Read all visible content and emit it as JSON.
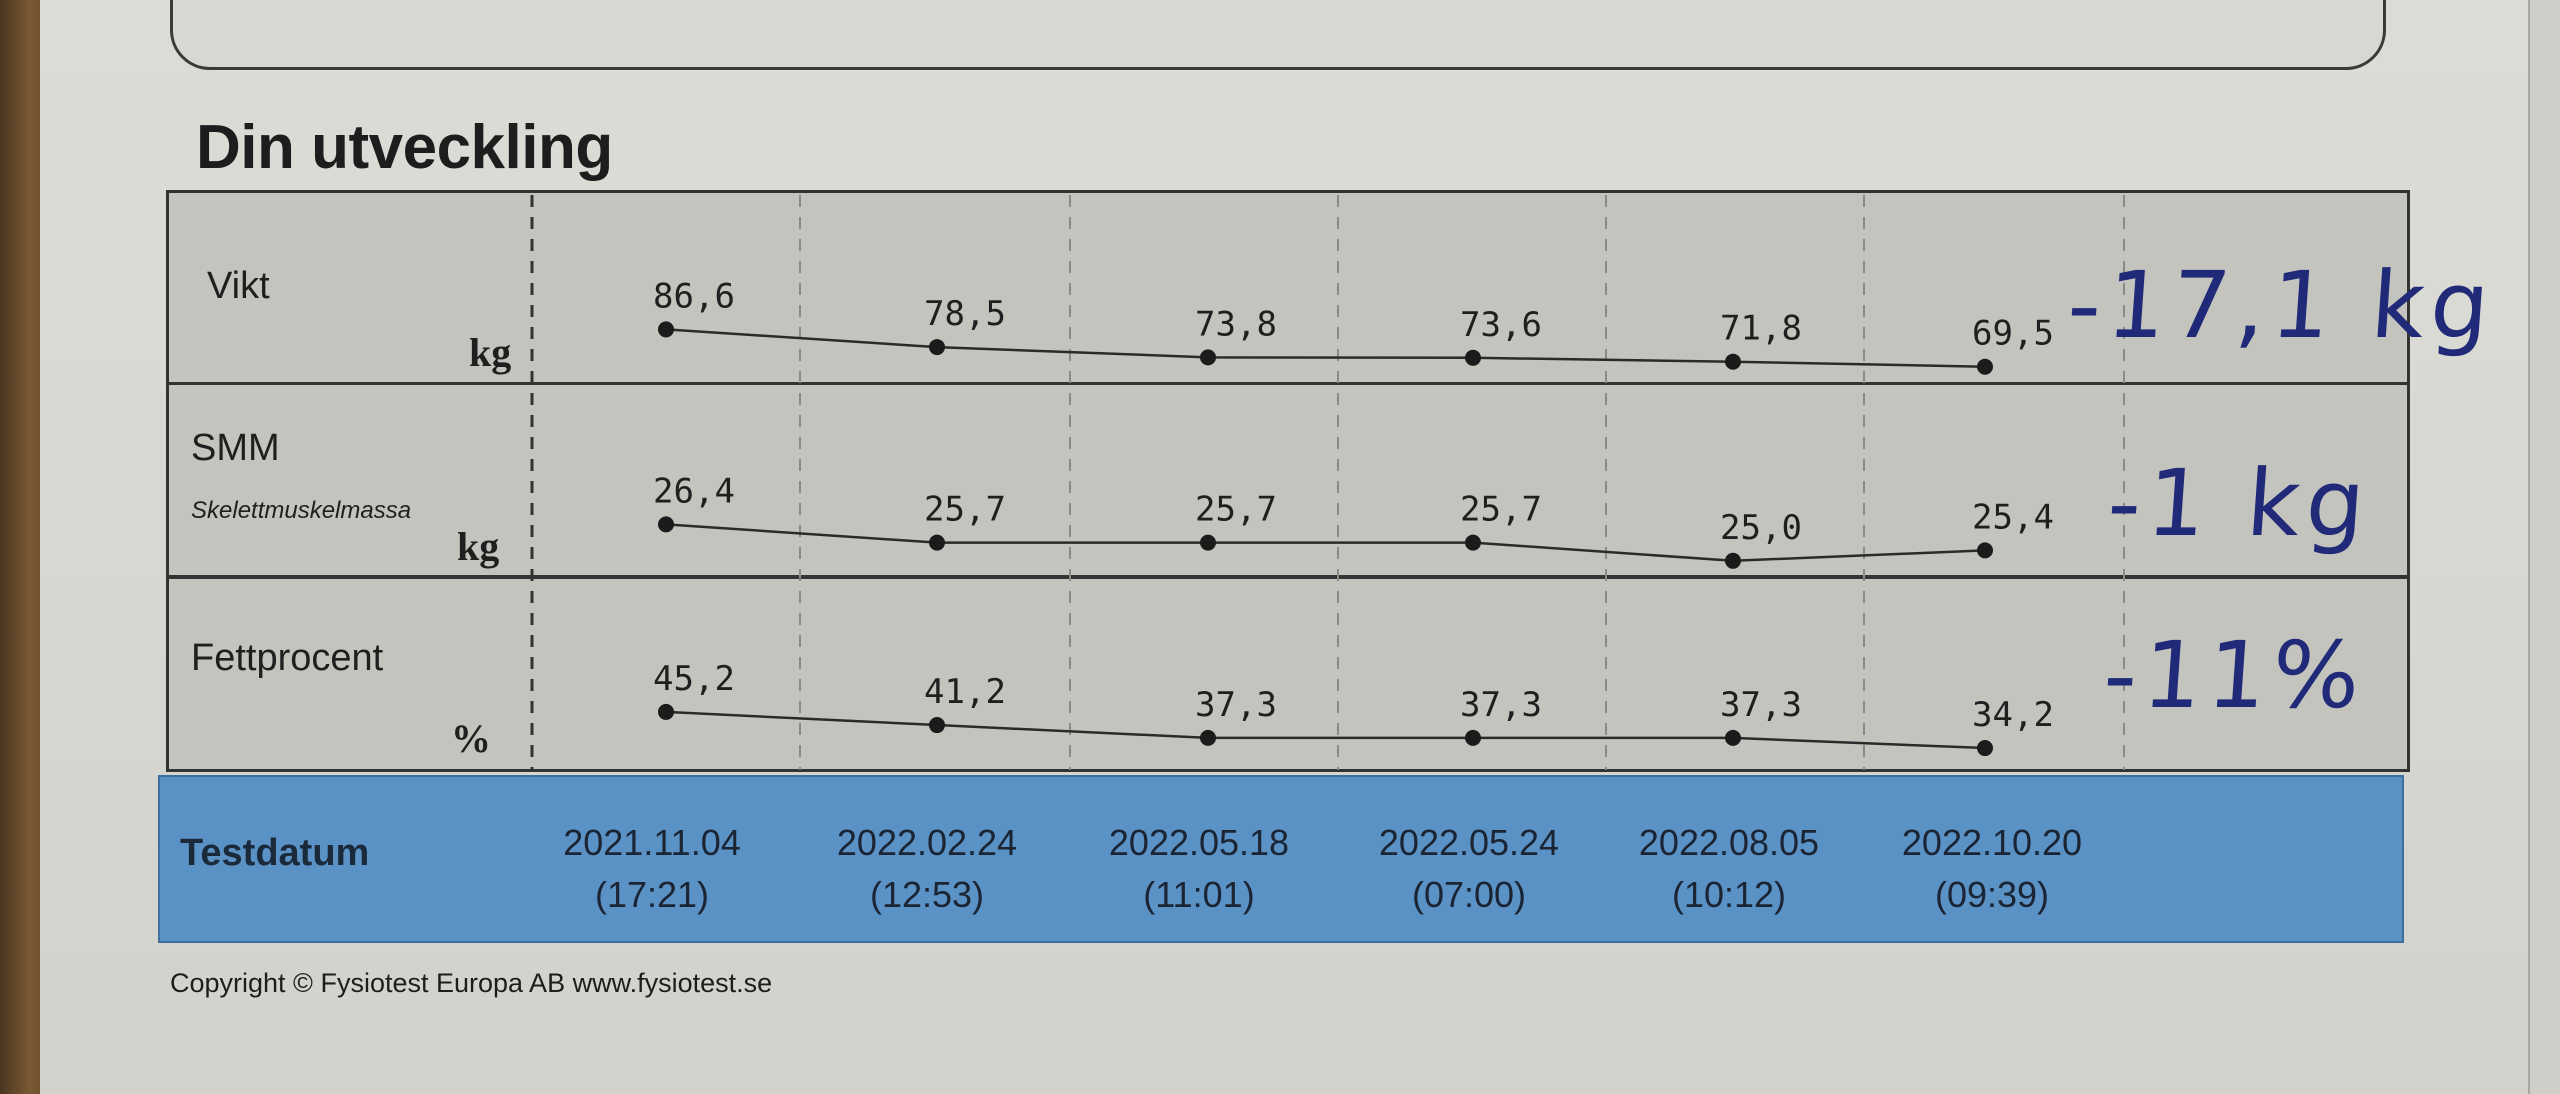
{
  "title": "Din utveckling",
  "dates": [
    {
      "date": "2021.11.04",
      "time": "(17:21)"
    },
    {
      "date": "2022.02.24",
      "time": "(12:53)"
    },
    {
      "date": "2022.05.18",
      "time": "(11:01)"
    },
    {
      "date": "2022.05.24",
      "time": "(07:00)"
    },
    {
      "date": "2022.08.05",
      "time": "(10:12)"
    },
    {
      "date": "2022.10.20",
      "time": "(09:39)"
    }
  ],
  "date_bar_label": "Testdatum",
  "copyright": "Copyright © Fysiotest Europa AB www.fysiotest.se",
  "rows": {
    "vikt": {
      "label": "Vikt",
      "unit": "kg",
      "handwritten": "-17,1 kg"
    },
    "smm": {
      "label": "SMM",
      "sublabel": "Skelettmuskelmassa",
      "unit": "kg",
      "handwritten": "-1 kg"
    },
    "fett": {
      "label": "Fettprocent",
      "unit": "%",
      "handwritten": "-11%"
    }
  },
  "chart_data": [
    {
      "type": "line",
      "series_name": "Vikt",
      "unit": "kg",
      "x": [
        "2021.11.04",
        "2022.02.24",
        "2022.05.18",
        "2022.05.24",
        "2022.08.05",
        "2022.10.20"
      ],
      "values": [
        86.6,
        78.5,
        73.8,
        73.6,
        71.8,
        69.5
      ],
      "labels": [
        "86,6",
        "78,5",
        "73,8",
        "73,6",
        "71,8",
        "69,5"
      ],
      "ylim": [
        68,
        90
      ]
    },
    {
      "type": "line",
      "series_name": "SMM",
      "unit": "kg",
      "x": [
        "2021.11.04",
        "2022.02.24",
        "2022.05.18",
        "2022.05.24",
        "2022.08.05",
        "2022.10.20"
      ],
      "values": [
        26.4,
        25.7,
        25.7,
        25.7,
        25.0,
        25.4
      ],
      "labels": [
        "26,4",
        "25,7",
        "25,7",
        "25,7",
        "25,0",
        "25,4"
      ],
      "ylim": [
        24.8,
        26.8
      ]
    },
    {
      "type": "line",
      "series_name": "Fettprocent",
      "unit": "%",
      "x": [
        "2021.11.04",
        "2022.02.24",
        "2022.05.18",
        "2022.05.24",
        "2022.08.05",
        "2022.10.20"
      ],
      "values": [
        45.2,
        41.2,
        37.3,
        37.3,
        37.3,
        34.2
      ],
      "labels": [
        "45,2",
        "41,2",
        "37,3",
        "37,3",
        "37,3",
        "34,2"
      ],
      "ylim": [
        33,
        47
      ]
    }
  ]
}
